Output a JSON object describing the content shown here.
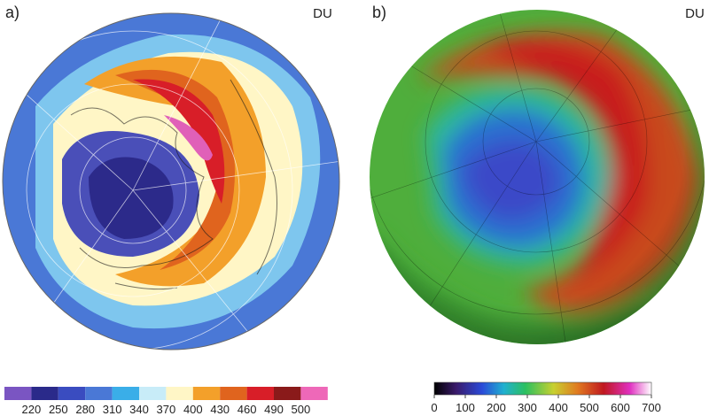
{
  "panels": [
    {
      "label": "a)",
      "unit": "DU",
      "colorbar": {
        "ticks": [
          "220",
          "250",
          "280",
          "310",
          "340",
          "370",
          "400",
          "430",
          "460",
          "490",
          "500"
        ]
      }
    },
    {
      "label": "b)",
      "unit": "DU",
      "colorbar": {
        "ticks": [
          "0",
          "100",
          "200",
          "300",
          "400",
          "500",
          "600",
          "700"
        ]
      }
    }
  ]
}
